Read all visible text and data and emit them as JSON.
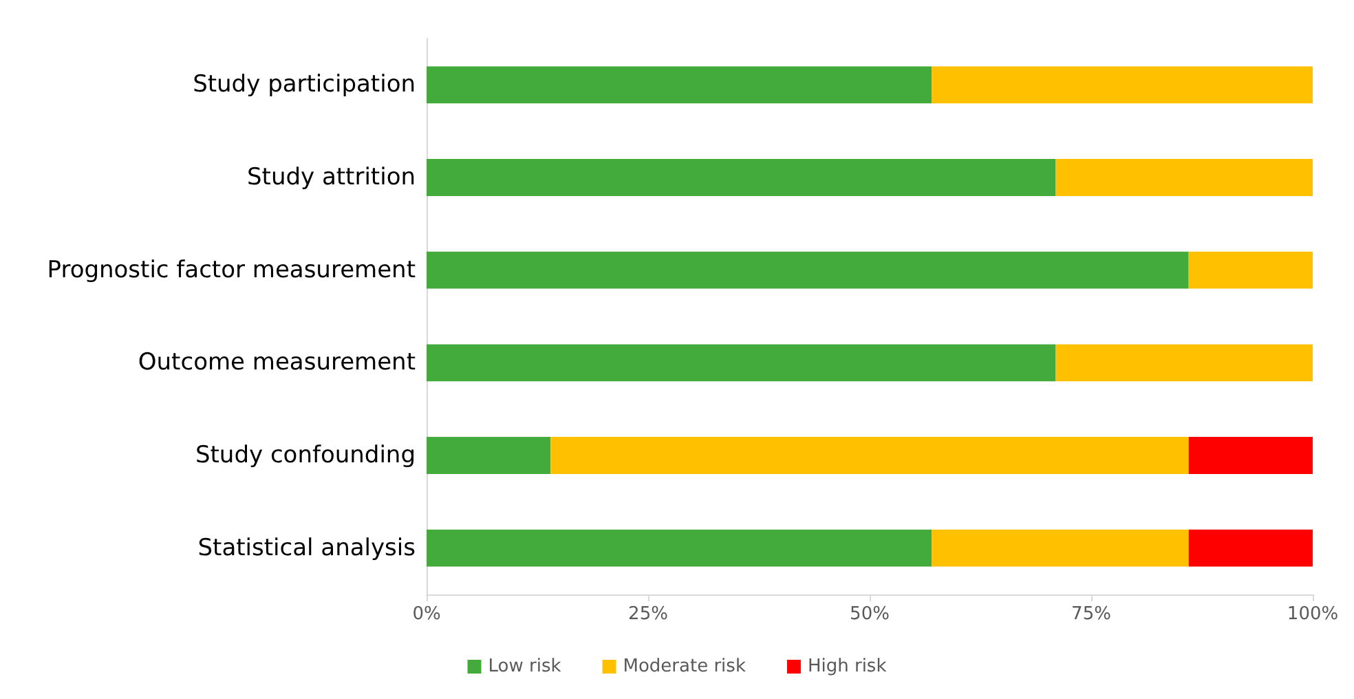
{
  "chart_data": {
    "type": "bar",
    "orientation": "horizontal",
    "stacked": true,
    "categories": [
      "Study participation",
      "Study attrition",
      "Prognostic factor measurement",
      "Outcome measurement",
      "Study confounding",
      "Statistical analysis"
    ],
    "series": [
      {
        "name": "Low risk",
        "color": "#43ab3c",
        "values": [
          57,
          71,
          86,
          71,
          14,
          57
        ]
      },
      {
        "name": "Moderate risk",
        "color": "#ffc000",
        "values": [
          43,
          29,
          14,
          29,
          72,
          29
        ]
      },
      {
        "name": "High risk",
        "color": "#ff0000",
        "values": [
          0,
          0,
          0,
          0,
          14,
          14
        ]
      }
    ],
    "xlim": [
      0,
      100
    ],
    "xticks": [
      {
        "value": 0,
        "label": "0%"
      },
      {
        "value": 25,
        "label": "25%"
      },
      {
        "value": 50,
        "label": "50%"
      },
      {
        "value": 75,
        "label": "75%"
      },
      {
        "value": 100,
        "label": "100%"
      }
    ],
    "grid": false,
    "legend": "bottom"
  }
}
